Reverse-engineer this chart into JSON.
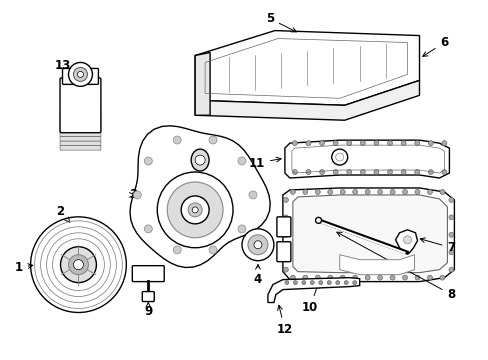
{
  "background_color": "#ffffff",
  "line_color": "#000000",
  "line_width": 1.0,
  "label_fontsize": 8.5,
  "figsize": [
    4.89,
    3.6
  ],
  "dpi": 100
}
